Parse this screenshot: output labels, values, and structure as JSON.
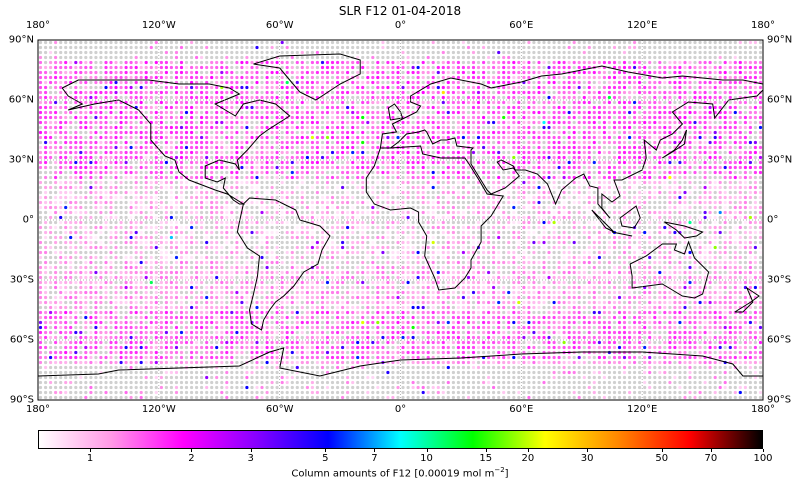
{
  "title": "SLR F12 01-04-2018",
  "lon_ticks": [
    "180°",
    "120°W",
    "60°W",
    "0°",
    "60°E",
    "120°E",
    "180°"
  ],
  "lon_values": [
    -180,
    -120,
    -60,
    0,
    60,
    120,
    180
  ],
  "lat_ticks": [
    "90°N",
    "60°N",
    "30°N",
    "0°",
    "30°S",
    "60°S",
    "90°S"
  ],
  "lat_values": [
    90,
    60,
    30,
    0,
    -30,
    -60,
    -90
  ],
  "colorbar": {
    "label": "Column amounts of F12 [0.00019 mol m",
    "label_sup": "−2",
    "label_end": "]",
    "scale": "log",
    "range": [
      0.7,
      100
    ],
    "ticks": [
      "1",
      "2",
      "3",
      "5",
      "7",
      "10",
      "15",
      "20",
      "30",
      "50",
      "70",
      "100"
    ],
    "tick_values": [
      1,
      2,
      3,
      5,
      7,
      10,
      15,
      20,
      30,
      50,
      70,
      100
    ],
    "colors": [
      "#ffffff",
      "#ff99e6",
      "#ff00ff",
      "#8800ff",
      "#0000ff",
      "#00ffff",
      "#00ff00",
      "#ffff00",
      "#ff8800",
      "#ff0000",
      "#000000"
    ]
  },
  "map": {
    "grid_spacing_deg": 2.5,
    "missing_color": "#d0d0d0",
    "projection": "equirectangular",
    "gridlines": true
  }
}
